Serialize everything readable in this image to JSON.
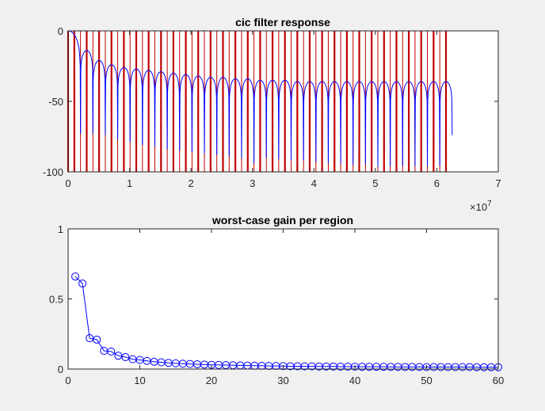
{
  "figure": {
    "background": "#f0f0f0"
  },
  "chart_data": [
    {
      "type": "line",
      "title": "cic filter response",
      "xlabel": "",
      "ylabel": "",
      "xlim": [
        0,
        70000000
      ],
      "ylim": [
        -100,
        0
      ],
      "x_exponent_label": "×10",
      "x_exponent_power": "7",
      "xticks": [
        0,
        10000000,
        20000000,
        30000000,
        40000000,
        50000000,
        60000000,
        70000000
      ],
      "xtick_labels": [
        "0",
        "1",
        "2",
        "3",
        "4",
        "5",
        "6",
        "7"
      ],
      "yticks": [
        -100,
        -50,
        0
      ],
      "ytick_labels": [
        "-100",
        "-50",
        "0"
      ],
      "grid": false,
      "response": {
        "color": "#0000ff",
        "x_max": 62500000,
        "num_lobes": 31,
        "lobe_width": 2016129,
        "x": [
          0,
          500000,
          1000000,
          2016129,
          3024194,
          4032258,
          5040323,
          6048387,
          7056452,
          8064516,
          9072581,
          10080645,
          11088710,
          12096774,
          13104839,
          14112903,
          15120968,
          16129032,
          17137097,
          18145161,
          19153226,
          20161290,
          21169355,
          22177419,
          23185484,
          24193548,
          25201613,
          26209677,
          27217742,
          28225806,
          29233871,
          30241935,
          31250000,
          32258065,
          33266129,
          34274194,
          35282258,
          36290323,
          37298387,
          38306452,
          39314516,
          40322581,
          41330645,
          42338710,
          43346774,
          44354839,
          45362903,
          46370968,
          47379032,
          48387097,
          49395161,
          50403226,
          51411290,
          52419355,
          53427419,
          54435484,
          55443548,
          56451613,
          57459677,
          58467742,
          59475806,
          60483871,
          61491935,
          62500000
        ],
        "y": [
          0,
          -2,
          -8,
          -73,
          -14,
          -73,
          -21,
          -74,
          -24,
          -77,
          -26,
          -79,
          -27,
          -81,
          -28,
          -82,
          -29,
          -84,
          -30,
          -85,
          -31,
          -86,
          -32,
          -87,
          -33,
          -88,
          -33,
          -89,
          -34,
          -90,
          -34,
          -94,
          -35,
          -90,
          -35,
          -91,
          -35,
          -92,
          -36,
          -92,
          -36,
          -93,
          -36,
          -94,
          -36,
          -94,
          -36,
          -95,
          -36,
          -95,
          -36,
          -96,
          -36,
          -96,
          -36,
          -96,
          -36,
          -97,
          -36,
          -97,
          -36,
          -99,
          -36,
          -74
        ]
      },
      "region_lines": {
        "color": "#c00000",
        "thick_x": [
          0,
          1008065,
          3024194,
          5040323,
          7056452,
          9072581,
          11088710,
          13104839,
          15120968,
          17137097,
          19153226,
          21169355,
          23185484,
          25201613,
          27217742,
          29233871,
          31250000,
          33266129,
          35282258,
          37298387,
          39314516,
          41330645,
          43346774,
          45362903,
          47379032,
          49395161,
          51411290,
          53427419,
          55443548,
          57459677,
          59475806,
          61491935
        ],
        "thin_x": [
          2016129,
          4032258,
          6048387,
          8064516,
          10080645,
          12096774,
          14112903,
          16129032,
          18145161,
          20161290,
          22177419,
          24193548,
          26209677,
          28225806,
          30241935,
          32258065,
          34274194,
          36290323,
          38306452,
          40322581,
          42338710,
          44354839,
          46370968,
          48387097,
          50403226,
          52419355,
          54435484,
          56451613,
          58467742,
          60483871
        ]
      }
    },
    {
      "type": "line",
      "title": "worst-case gain per region",
      "xlabel": "",
      "ylabel": "",
      "xlim": [
        0,
        60
      ],
      "ylim": [
        0,
        1
      ],
      "xticks": [
        0,
        10,
        20,
        30,
        40,
        50,
        60
      ],
      "xtick_labels": [
        "0",
        "10",
        "20",
        "30",
        "40",
        "50",
        "60"
      ],
      "yticks": [
        0,
        0.5,
        1
      ],
      "ytick_labels": [
        "0",
        "0.5",
        "1"
      ],
      "grid": false,
      "marker": "circle",
      "color": "#0000ff",
      "x": [
        1,
        2,
        3,
        4,
        5,
        6,
        7,
        8,
        9,
        10,
        11,
        12,
        13,
        14,
        15,
        16,
        17,
        18,
        19,
        20,
        21,
        22,
        23,
        24,
        25,
        26,
        27,
        28,
        29,
        30,
        31,
        32,
        33,
        34,
        35,
        36,
        37,
        38,
        39,
        40,
        41,
        42,
        43,
        44,
        45,
        46,
        47,
        48,
        49,
        50,
        51,
        52,
        53,
        54,
        55,
        56,
        57,
        58,
        59,
        60
      ],
      "y": [
        0.66,
        0.61,
        0.22,
        0.21,
        0.13,
        0.125,
        0.095,
        0.085,
        0.07,
        0.065,
        0.058,
        0.052,
        0.048,
        0.044,
        0.041,
        0.038,
        0.036,
        0.034,
        0.032,
        0.03,
        0.029,
        0.028,
        0.027,
        0.026,
        0.025,
        0.024,
        0.023,
        0.022,
        0.022,
        0.021,
        0.02,
        0.02,
        0.019,
        0.019,
        0.018,
        0.018,
        0.018,
        0.017,
        0.017,
        0.017,
        0.016,
        0.016,
        0.016,
        0.016,
        0.015,
        0.015,
        0.015,
        0.015,
        0.015,
        0.014,
        0.014,
        0.014,
        0.014,
        0.014,
        0.014,
        0.014,
        0.013,
        0.013,
        0.013,
        0.013
      ]
    }
  ]
}
